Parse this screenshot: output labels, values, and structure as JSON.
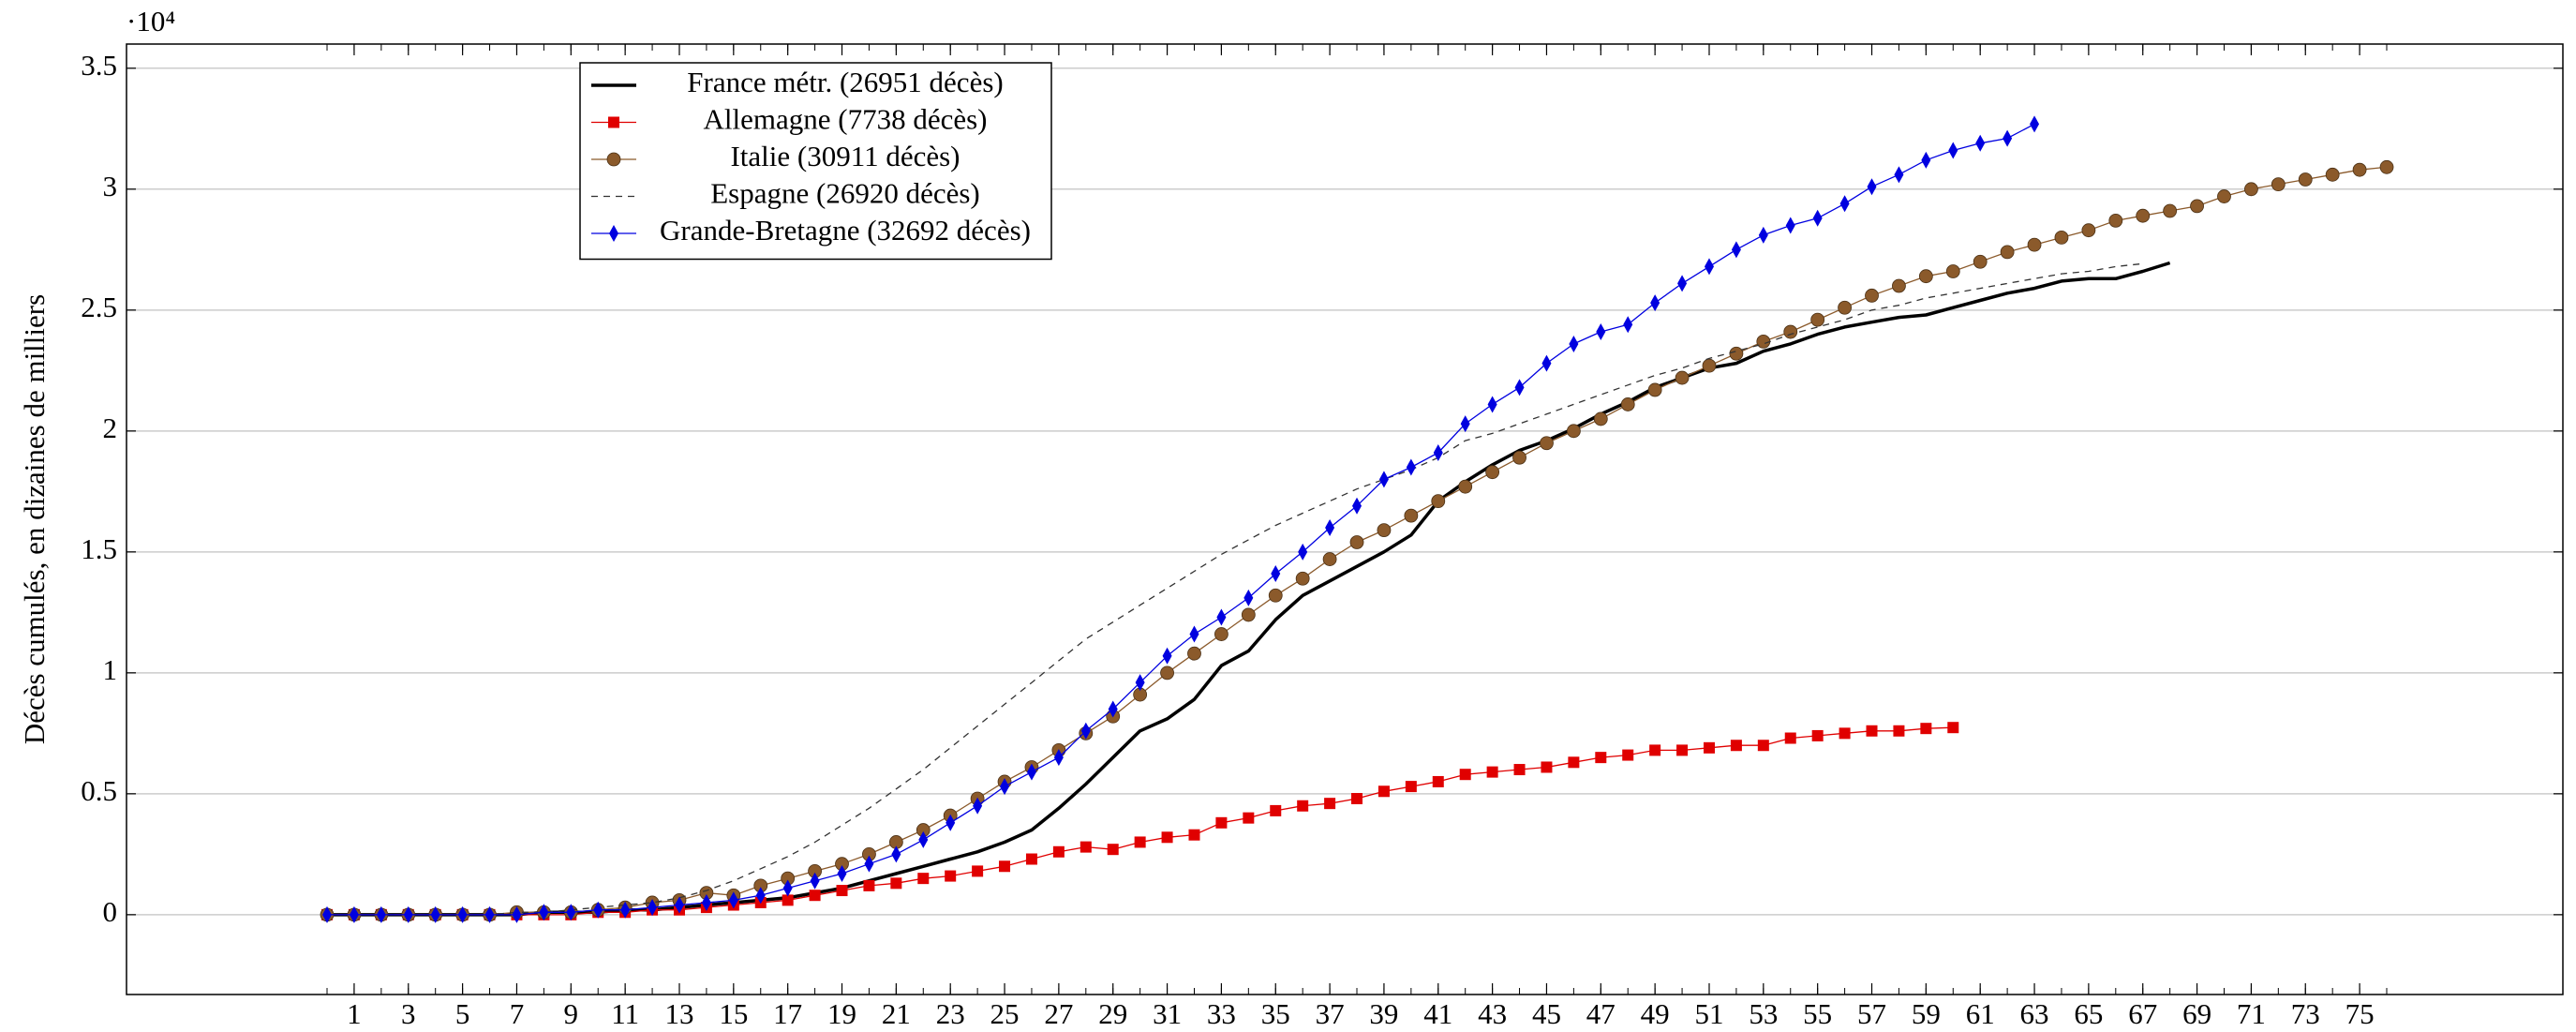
{
  "chart_data": {
    "type": "line",
    "ylabel": "Décès cumulés, en dizaines de milliers",
    "y_scale_label": "·10⁴",
    "x": [
      0,
      1,
      2,
      3,
      4,
      5,
      6,
      7,
      8,
      9,
      10,
      11,
      12,
      13,
      14,
      15,
      16,
      17,
      18,
      19,
      20,
      21,
      22,
      23,
      24,
      25,
      26,
      27,
      28,
      29,
      30,
      31,
      32,
      33,
      34,
      35,
      36,
      37,
      38,
      39,
      40,
      41,
      42,
      43,
      44,
      45,
      46,
      47,
      48,
      49,
      50,
      51,
      52,
      53,
      54,
      55,
      56,
      57,
      58,
      59,
      60,
      61,
      62,
      63,
      64,
      65,
      66,
      67,
      68,
      69,
      70,
      71,
      72,
      73,
      74,
      75,
      76
    ],
    "xlim": [
      -7.4,
      82.5
    ],
    "xticks": [
      1,
      3,
      5,
      7,
      9,
      11,
      13,
      15,
      17,
      19,
      21,
      23,
      25,
      27,
      29,
      31,
      33,
      35,
      37,
      39,
      41,
      43,
      45,
      47,
      49,
      51,
      53,
      55,
      57,
      59,
      61,
      63,
      65,
      67,
      69,
      71,
      73,
      75
    ],
    "ylim": [
      -0.33,
      3.6
    ],
    "yticks": [
      0,
      0.5,
      1,
      1.5,
      2,
      2.5,
      3,
      3.5
    ],
    "grid": true,
    "legend": "upper left",
    "series": [
      {
        "name": "France métr. (26951 décès)",
        "color": "#000000",
        "width": 3.5,
        "marker": null,
        "dashed": false,
        "values": [
          0,
          0,
          0,
          0,
          0,
          0,
          0,
          0,
          0.01,
          0.01,
          0.01,
          0.02,
          0.02,
          0.03,
          0.04,
          0.05,
          0.06,
          0.07,
          0.09,
          0.11,
          0.14,
          0.17,
          0.2,
          0.23,
          0.26,
          0.3,
          0.35,
          0.44,
          0.54,
          0.65,
          0.76,
          0.81,
          0.89,
          1.03,
          1.09,
          1.22,
          1.32,
          1.38,
          1.44,
          1.5,
          1.57,
          1.71,
          1.79,
          1.86,
          1.92,
          1.96,
          2.01,
          2.07,
          2.12,
          2.18,
          2.22,
          2.26,
          2.28,
          2.33,
          2.36,
          2.4,
          2.43,
          2.45,
          2.47,
          2.48,
          2.51,
          2.54,
          2.57,
          2.59,
          2.62,
          2.63,
          2.63,
          2.66,
          2.6951,
          null,
          null,
          null,
          null,
          null,
          null,
          null,
          null
        ]
      },
      {
        "name": "Allemagne (7738 décès)",
        "color": "#e00000",
        "width": 1.3,
        "marker": "square",
        "dashed": false,
        "values": [
          0,
          0,
          0,
          0,
          0,
          0,
          0,
          0,
          0,
          0,
          0.01,
          0.01,
          0.02,
          0.02,
          0.03,
          0.04,
          0.05,
          0.06,
          0.08,
          0.1,
          0.12,
          0.13,
          0.15,
          0.16,
          0.18,
          0.2,
          0.23,
          0.26,
          0.28,
          0.27,
          0.3,
          0.32,
          0.33,
          0.38,
          0.4,
          0.43,
          0.45,
          0.46,
          0.48,
          0.51,
          0.53,
          0.55,
          0.58,
          0.59,
          0.6,
          0.61,
          0.63,
          0.65,
          0.66,
          0.68,
          0.68,
          0.69,
          0.7,
          0.7,
          0.73,
          0.74,
          0.75,
          0.76,
          0.76,
          0.77,
          0.7738,
          null,
          null,
          null,
          null,
          null,
          null,
          null,
          null,
          null,
          null,
          null,
          null,
          null,
          null,
          null,
          null
        ]
      },
      {
        "name": "Italie (30911 décès)",
        "color": "#8b5a2b",
        "width": 1.3,
        "marker": "circle",
        "dashed": false,
        "values": [
          0,
          0,
          0,
          0,
          0,
          0,
          0,
          0.01,
          0.01,
          0.01,
          0.02,
          0.03,
          0.05,
          0.06,
          0.09,
          0.08,
          0.12,
          0.15,
          0.18,
          0.21,
          0.25,
          0.3,
          0.35,
          0.41,
          0.48,
          0.55,
          0.61,
          0.68,
          0.75,
          0.82,
          0.91,
          1.0,
          1.08,
          1.16,
          1.24,
          1.32,
          1.39,
          1.47,
          1.54,
          1.59,
          1.65,
          1.71,
          1.77,
          1.83,
          1.89,
          1.95,
          2.0,
          2.05,
          2.11,
          2.17,
          2.22,
          2.27,
          2.32,
          2.37,
          2.41,
          2.46,
          2.51,
          2.56,
          2.6,
          2.64,
          2.66,
          2.7,
          2.74,
          2.77,
          2.8,
          2.83,
          2.87,
          2.89,
          2.91,
          2.93,
          2.97,
          3.0,
          3.02,
          3.04,
          3.06,
          3.08,
          3.0911
        ]
      },
      {
        "name": "Espagne (26920 décès)",
        "color": "#333333",
        "width": 1.3,
        "marker": null,
        "dashed": true,
        "values": [
          0,
          0,
          0,
          0,
          0,
          0,
          0,
          0.01,
          0.01,
          0.02,
          0.03,
          0.04,
          0.05,
          0.07,
          0.1,
          0.14,
          0.19,
          0.24,
          0.3,
          0.37,
          0.44,
          0.52,
          0.6,
          0.69,
          0.78,
          0.87,
          0.96,
          1.05,
          1.14,
          1.21,
          1.28,
          1.35,
          1.42,
          1.49,
          1.55,
          1.61,
          1.66,
          1.71,
          1.76,
          1.8,
          1.84,
          1.89,
          1.96,
          1.99,
          2.03,
          2.07,
          2.11,
          2.15,
          2.19,
          2.23,
          2.26,
          2.3,
          2.33,
          2.36,
          2.4,
          2.43,
          2.46,
          2.5,
          2.52,
          2.55,
          2.57,
          2.59,
          2.61,
          2.63,
          2.65,
          2.66,
          2.68,
          2.692,
          null,
          null,
          null,
          null,
          null,
          null,
          null,
          null,
          null
        ]
      },
      {
        "name": "Grande-Bretagne (32692 décès)",
        "color": "#0000e0",
        "width": 1.3,
        "marker": "diamond",
        "dashed": false,
        "values": [
          0,
          0,
          0,
          0,
          0,
          0,
          0,
          0,
          0.01,
          0.01,
          0.02,
          0.02,
          0.03,
          0.04,
          0.05,
          0.06,
          0.08,
          0.11,
          0.14,
          0.17,
          0.21,
          0.25,
          0.31,
          0.38,
          0.45,
          0.53,
          0.59,
          0.65,
          0.76,
          0.85,
          0.96,
          1.07,
          1.16,
          1.23,
          1.31,
          1.41,
          1.5,
          1.6,
          1.69,
          1.8,
          1.85,
          1.91,
          2.03,
          2.11,
          2.18,
          2.28,
          2.36,
          2.41,
          2.44,
          2.53,
          2.61,
          2.68,
          2.75,
          2.81,
          2.85,
          2.88,
          2.94,
          3.01,
          3.06,
          3.12,
          3.16,
          3.19,
          3.21,
          3.2692,
          null,
          null,
          null,
          null,
          null,
          null,
          null,
          null,
          null,
          null,
          null,
          null,
          null
        ]
      }
    ]
  }
}
